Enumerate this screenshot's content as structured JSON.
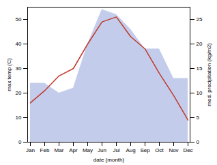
{
  "chart_data": {
    "type": "line",
    "xlabel": "date (month)",
    "ylabel": "max temp (C)",
    "y2label": "med. precipitation (kg/m2)",
    "categories": [
      "Jan",
      "Feb",
      "Mar",
      "Apr",
      "May",
      "Jun",
      "Jul",
      "Aug",
      "Sep",
      "Oct",
      "Nov",
      "Dec"
    ],
    "series": [
      {
        "type": "area",
        "axis": "y2",
        "color": "#b8c4e8",
        "values": [
          12,
          12,
          10,
          11,
          20,
          27,
          26,
          23,
          19,
          19,
          13,
          13
        ]
      },
      {
        "type": "line",
        "color": "#c0392b",
        "values": [
          16,
          21,
          27,
          30,
          40,
          49,
          51,
          43,
          38,
          28,
          19,
          9
        ]
      }
    ],
    "ylim": [
      0,
      55
    ],
    "yticks": [
      0,
      10,
      20,
      30,
      40,
      50
    ],
    "y2lim": [
      0,
      27.5
    ],
    "y2ticks": [
      0,
      5,
      10,
      15,
      20,
      25
    ]
  }
}
